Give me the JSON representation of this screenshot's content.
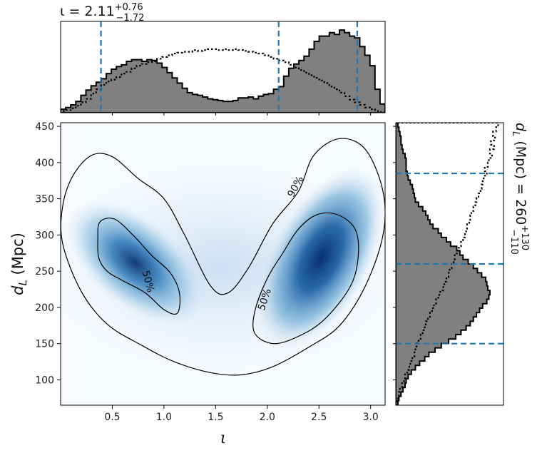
{
  "titles": {
    "top": {
      "symbol": "ι",
      "equals": " = 2.11",
      "sup": "+0.76",
      "sub": "−1.72"
    },
    "right": {
      "label": "d",
      "sub_l": "L",
      "units": " (Mpc) = 260",
      "sup": "+130",
      "sub": "−110"
    }
  },
  "axes": {
    "xlabel": "ι",
    "ylabel_d": "d",
    "ylabel_sub": "L",
    "ylabel_units": " (Mpc)",
    "xlim": [
      0.0,
      3.14
    ],
    "ylim": [
      65,
      455
    ],
    "xticks": [
      {
        "value": 0.5,
        "label": "0.5"
      },
      {
        "value": 1.0,
        "label": "1.0"
      },
      {
        "value": 1.5,
        "label": "1.5"
      },
      {
        "value": 2.0,
        "label": "2.0"
      },
      {
        "value": 2.5,
        "label": "2.5"
      },
      {
        "value": 3.0,
        "label": "3.0"
      }
    ],
    "yticks": [
      {
        "value": 100,
        "label": "100"
      },
      {
        "value": 150,
        "label": "150"
      },
      {
        "value": 200,
        "label": "200"
      },
      {
        "value": 250,
        "label": "250"
      },
      {
        "value": 300,
        "label": "300"
      },
      {
        "value": 350,
        "label": "350"
      },
      {
        "value": 400,
        "label": "400"
      },
      {
        "value": 450,
        "label": "450"
      }
    ]
  },
  "colors": {
    "fill": "#808080",
    "line": "#000000",
    "dashed": "#1f77b4",
    "density_dark": "#08306b",
    "density_mid": "#4292c6",
    "density_light": "#f7fbff"
  },
  "contour_labels": [
    {
      "text": "50%",
      "x": 0.85,
      "y": 236,
      "rot": 75
    },
    {
      "text": "90%",
      "x": 2.27,
      "y": 367,
      "rot": -62
    },
    {
      "text": "50%",
      "x": 1.97,
      "y": 211,
      "rot": -72
    }
  ],
  "chart_data": [
    {
      "type": "heatmap",
      "name": "joint posterior",
      "x_range": [
        0.0,
        3.14
      ],
      "y_range": [
        65,
        455
      ],
      "modes": [
        {
          "iota": 0.72,
          "dL": 262
        },
        {
          "iota": 2.52,
          "dL": 268
        }
      ],
      "contours": [
        {
          "level": "50%",
          "lobes": [
            [
              [
                0.38,
                318
              ],
              [
                0.52,
                322
              ],
              [
                0.7,
                300
              ],
              [
                0.88,
                272
              ],
              [
                1.06,
                248
              ],
              [
                1.15,
                220
              ],
              [
                1.13,
                192
              ],
              [
                1.0,
                197
              ],
              [
                0.82,
                220
              ],
              [
                0.6,
                237
              ],
              [
                0.45,
                250
              ],
              [
                0.37,
                268
              ],
              [
                0.36,
                295
              ],
              [
                0.38,
                318
              ]
            ],
            [
              [
                2.3,
                308
              ],
              [
                2.48,
                328
              ],
              [
                2.68,
                328
              ],
              [
                2.85,
                308
              ],
              [
                2.88,
                270
              ],
              [
                2.8,
                228
              ],
              [
                2.55,
                183
              ],
              [
                2.3,
                160
              ],
              [
                2.06,
                150
              ],
              [
                1.88,
                164
              ],
              [
                1.88,
                195
              ],
              [
                2.0,
                240
              ],
              [
                2.15,
                275
              ],
              [
                2.3,
                308
              ]
            ]
          ]
        },
        {
          "level": "90%",
          "lobes": [
            [
              [
                0.02,
                340
              ],
              [
                0.12,
                382
              ],
              [
                0.3,
                410
              ],
              [
                0.5,
                408
              ],
              [
                0.75,
                378
              ],
              [
                1.0,
                350
              ],
              [
                1.2,
                300
              ],
              [
                1.45,
                230
              ],
              [
                1.62,
                220
              ],
              [
                1.82,
                255
              ],
              [
                2.05,
                315
              ],
              [
                2.3,
                360
              ],
              [
                2.45,
                410
              ],
              [
                2.7,
                433
              ],
              [
                2.95,
                418
              ],
              [
                3.12,
                360
              ],
              [
                3.12,
                300
              ],
              [
                2.95,
                230
              ],
              [
                2.7,
                175
              ],
              [
                2.4,
                145
              ],
              [
                2.05,
                118
              ],
              [
                1.75,
                107
              ],
              [
                1.45,
                110
              ],
              [
                1.1,
                125
              ],
              [
                0.78,
                148
              ],
              [
                0.45,
                177
              ],
              [
                0.2,
                222
              ],
              [
                0.02,
                288
              ],
              [
                0.02,
                340
              ]
            ]
          ]
        }
      ]
    },
    {
      "type": "bar",
      "name": "ι marginal",
      "bin_range": [
        0.0,
        3.14
      ],
      "bins": 64,
      "values": [
        0.04,
        0.06,
        0.09,
        0.13,
        0.2,
        0.26,
        0.31,
        0.35,
        0.39,
        0.45,
        0.5,
        0.53,
        0.55,
        0.59,
        0.61,
        0.61,
        0.59,
        0.61,
        0.6,
        0.57,
        0.52,
        0.46,
        0.4,
        0.34,
        0.28,
        0.23,
        0.21,
        0.2,
        0.18,
        0.16,
        0.15,
        0.14,
        0.13,
        0.13,
        0.14,
        0.17,
        0.17,
        0.18,
        0.16,
        0.19,
        0.21,
        0.22,
        0.27,
        0.3,
        0.42,
        0.51,
        0.56,
        0.6,
        0.65,
        0.73,
        0.82,
        0.88,
        0.88,
        0.92,
        0.9,
        0.95,
        0.92,
        0.88,
        0.86,
        0.76,
        0.66,
        0.54,
        0.27,
        0.1
      ],
      "prior_values": [
        0.02,
        0.03,
        0.05,
        0.08,
        0.12,
        0.16,
        0.22,
        0.27,
        0.32,
        0.36,
        0.38,
        0.41,
        0.45,
        0.47,
        0.51,
        0.54,
        0.56,
        0.58,
        0.59,
        0.62,
        0.64,
        0.66,
        0.68,
        0.69,
        0.7,
        0.7,
        0.72,
        0.71,
        0.72,
        0.73,
        0.73,
        0.72,
        0.73,
        0.72,
        0.73,
        0.72,
        0.71,
        0.7,
        0.69,
        0.68,
        0.66,
        0.64,
        0.62,
        0.6,
        0.58,
        0.55,
        0.52,
        0.49,
        0.46,
        0.43,
        0.4,
        0.37,
        0.34,
        0.3,
        0.27,
        0.23,
        0.19,
        0.15,
        0.12,
        0.09,
        0.06,
        0.04,
        0.02,
        0.01
      ],
      "quantiles": [
        0.39,
        2.11,
        2.87
      ]
    },
    {
      "type": "bar",
      "name": "dL marginal",
      "bin_range": [
        65,
        455
      ],
      "bins": 64,
      "values": [
        0.02,
        0.03,
        0.05,
        0.07,
        0.09,
        0.1,
        0.12,
        0.15,
        0.19,
        0.23,
        0.28,
        0.32,
        0.38,
        0.44,
        0.51,
        0.58,
        0.63,
        0.68,
        0.72,
        0.75,
        0.78,
        0.81,
        0.84,
        0.88,
        0.9,
        0.91,
        0.89,
        0.88,
        0.87,
        0.83,
        0.79,
        0.75,
        0.7,
        0.65,
        0.62,
        0.59,
        0.53,
        0.49,
        0.44,
        0.41,
        0.36,
        0.33,
        0.31,
        0.29,
        0.26,
        0.22,
        0.19,
        0.18,
        0.17,
        0.16,
        0.14,
        0.12,
        0.11,
        0.1,
        0.1,
        0.1,
        0.09,
        0.07,
        0.06,
        0.05,
        0.05,
        0.04,
        0.03,
        0.02
      ],
      "prior_values": [
        0.01,
        0.02,
        0.03,
        0.04,
        0.06,
        0.08,
        0.09,
        0.11,
        0.13,
        0.14,
        0.16,
        0.18,
        0.19,
        0.2,
        0.22,
        0.24,
        0.26,
        0.28,
        0.29,
        0.31,
        0.33,
        0.35,
        0.37,
        0.39,
        0.41,
        0.43,
        0.46,
        0.47,
        0.49,
        0.51,
        0.52,
        0.54,
        0.56,
        0.57,
        0.59,
        0.61,
        0.63,
        0.65,
        0.67,
        0.68,
        0.69,
        0.71,
        0.72,
        0.73,
        0.75,
        0.77,
        0.78,
        0.8,
        0.82,
        0.83,
        0.84,
        0.85,
        0.88,
        0.86,
        0.89,
        0.9,
        0.93,
        0.91,
        0.95,
        0.92,
        0.96,
        0.94,
        0.97,
        0.99
      ],
      "quantiles": [
        150,
        260,
        385
      ]
    }
  ]
}
